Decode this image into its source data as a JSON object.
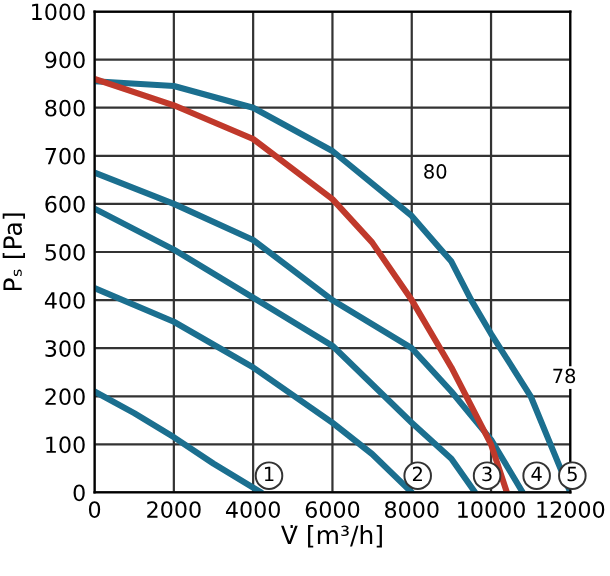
{
  "chart_data": {
    "type": "line",
    "xlabel": "V̇ [m³/h]",
    "ylabel": "Pₛ [Pa]",
    "xlim": [
      0,
      12000
    ],
    "ylim": [
      0,
      1000
    ],
    "xticks": [
      0,
      2000,
      4000,
      6000,
      8000,
      10000,
      12000
    ],
    "yticks": [
      0,
      100,
      200,
      300,
      400,
      500,
      600,
      700,
      800,
      900,
      1000
    ],
    "grid": true,
    "marker": "none",
    "line_style": "solid",
    "series": [
      {
        "color": "#1b6f8f",
        "x": [
          0,
          1000,
          2000,
          3000,
          4000,
          4200
        ],
        "values": [
          210,
          165,
          115,
          60,
          10,
          0
        ]
      },
      {
        "color": "#1b6f8f",
        "x": [
          0,
          2000,
          4000,
          6000,
          7000,
          8000
        ],
        "values": [
          425,
          355,
          260,
          145,
          80,
          0
        ]
      },
      {
        "color": "#1b6f8f",
        "x": [
          0,
          2000,
          4000,
          6000,
          8000,
          9000,
          9600
        ],
        "values": [
          590,
          505,
          405,
          305,
          145,
          70,
          0
        ]
      },
      {
        "color": "#1b6f8f",
        "x": [
          0,
          2000,
          4000,
          6000,
          8000,
          9000,
          10000,
          10800
        ],
        "values": [
          665,
          600,
          525,
          400,
          300,
          210,
          110,
          0
        ]
      },
      {
        "color": "#1b6f8f",
        "x": [
          0,
          2000,
          4000,
          6000,
          8000,
          9000,
          9500,
          10000,
          11000,
          11500,
          12000
        ],
        "values": [
          855,
          845,
          800,
          710,
          575,
          480,
          400,
          330,
          200,
          100,
          0
        ]
      },
      {
        "color": "#c0392b",
        "x": [
          0,
          2000,
          4000,
          6000,
          7000,
          8000,
          9000,
          10000,
          10400
        ],
        "values": [
          860,
          805,
          735,
          610,
          520,
          400,
          260,
          100,
          0
        ]
      }
    ],
    "annotations": [
      {
        "text": "80",
        "x": 8000,
        "y": 575
      },
      {
        "text": "78",
        "x": 11250,
        "y": 150
      },
      {
        "text": "1",
        "x": 4400,
        "y": 35
      },
      {
        "text": "2",
        "x": 8150,
        "y": 35
      },
      {
        "text": "3",
        "x": 9900,
        "y": 35
      },
      {
        "text": "4",
        "x": 11150,
        "y": 35
      },
      {
        "text": "5",
        "x": 12050,
        "y": 35
      }
    ]
  }
}
